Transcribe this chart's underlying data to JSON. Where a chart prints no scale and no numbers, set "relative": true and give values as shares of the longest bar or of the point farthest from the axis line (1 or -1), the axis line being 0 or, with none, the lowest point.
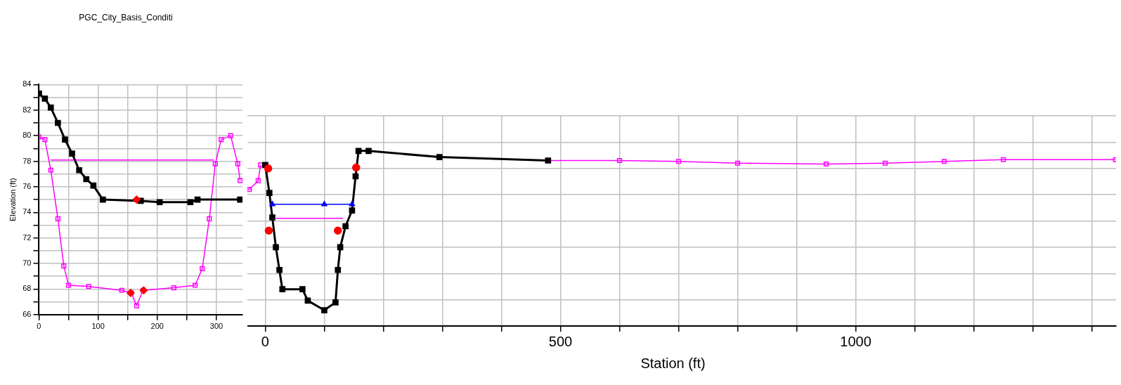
{
  "chart_data": [
    {
      "type": "line",
      "title": "PGC_City_Basis_Conditi",
      "ylabel": "Elevation (ft)",
      "xlim": [
        0,
        344
      ],
      "ylim": [
        66,
        84
      ],
      "xticks": [
        0,
        {
          "value": 50,
          "label": null
        },
        100,
        {
          "value": 150,
          "label": null
        },
        200,
        {
          "value": 250,
          "label": null
        },
        300
      ],
      "yticks": [
        66,
        {
          "value": 67,
          "label": null
        },
        68,
        {
          "value": 69,
          "label": null
        },
        70,
        {
          "value": 71,
          "label": null
        },
        72,
        {
          "value": 73,
          "label": null
        },
        74,
        {
          "value": 75,
          "label": null
        },
        76,
        {
          "value": 77,
          "label": null
        },
        78,
        {
          "value": 79,
          "label": null
        },
        80,
        {
          "value": 81,
          "label": null
        },
        82,
        {
          "value": 83,
          "label": null
        },
        84
      ],
      "grid": true,
      "legend": false,
      "series": [
        {
          "type": "line",
          "color": "#ff00ff",
          "marker": "none",
          "x": [
            20,
            296
          ],
          "values": [
            78.1,
            78.1
          ]
        },
        {
          "type": "line",
          "color": "#ff00ff",
          "marker": "square",
          "x": [
            0,
            10,
            20,
            32,
            42,
            50,
            84,
            140,
            156,
            165,
            176,
            228,
            264,
            276,
            288,
            298,
            308,
            324,
            336,
            340
          ],
          "values": [
            79.9,
            79.7,
            77.3,
            73.5,
            69.8,
            68.3,
            68.2,
            67.9,
            67.7,
            66.7,
            67.9,
            68.1,
            68.3,
            69.6,
            73.5,
            77.8,
            79.7,
            80.0,
            77.8,
            76.5
          ]
        },
        {
          "type": "line",
          "color": "#000000",
          "marker": "square",
          "x": [
            0,
            10,
            20,
            32,
            44,
            56,
            68,
            80,
            92,
            108,
            172,
            204,
            256,
            268,
            340
          ],
          "values": [
            83.3,
            82.9,
            82.2,
            81.0,
            79.7,
            78.6,
            77.3,
            76.6,
            76.1,
            75.0,
            74.9,
            74.8,
            74.8,
            75.0,
            75.0
          ]
        },
        {
          "type": "scatter",
          "color": "#ff0000",
          "marker": "diamond",
          "x": [
            165,
            155,
            177
          ],
          "values": [
            75.0,
            67.7,
            67.9
          ]
        }
      ]
    },
    {
      "type": "line",
      "xlabel": "Station (ft)",
      "relative": true,
      "xlim": [
        -60,
        1441
      ],
      "xticks": [
        0,
        {
          "value": 100,
          "label": null
        },
        {
          "value": 200,
          "label": null
        },
        {
          "value": 300,
          "label": null
        },
        {
          "value": 400,
          "label": null
        },
        500,
        {
          "value": 600,
          "label": null
        },
        {
          "value": 700,
          "label": null
        },
        {
          "value": 800,
          "label": null
        },
        {
          "value": 900,
          "label": null
        },
        1000,
        {
          "value": 1100,
          "label": null
        },
        {
          "value": 1200,
          "label": null
        },
        {
          "value": 1300,
          "label": null
        },
        {
          "value": 1400,
          "label": null
        }
      ],
      "grid": true,
      "legend": false,
      "series": [
        {
          "type": "line",
          "color": "#ff00ff",
          "marker": "none",
          "x": [
            18,
            132
          ],
          "values": [
            0.615,
            0.615
          ]
        },
        {
          "type": "line",
          "color": "#ff00ff",
          "marker": "square",
          "x": [
            -48,
            -27,
            -12,
            -8,
            0,
            479,
            600,
            700,
            800,
            950,
            1050,
            1150,
            1250,
            1440
          ],
          "values": [
            0.8,
            0.78,
            0.83,
            0.92,
            null,
            0.945,
            0.945,
            0.94,
            0.93,
            0.925,
            0.93,
            0.94,
            0.95,
            0.95
          ]
        },
        {
          "type": "line",
          "color": "#000000",
          "marker": "square",
          "x": [
            0,
            7,
            12,
            18,
            24,
            29,
            63,
            72,
            100,
            119,
            123,
            127,
            136,
            147,
            153,
            158,
            175,
            295,
            479
          ],
          "values": [
            0.92,
            0.76,
            0.62,
            0.45,
            0.32,
            0.21,
            0.21,
            0.145,
            0.09,
            0.135,
            0.32,
            0.45,
            0.57,
            0.66,
            0.855,
            1,
            1,
            0.965,
            0.945
          ]
        },
        {
          "type": "line",
          "color": "#0000ff",
          "marker": "triangle",
          "x": [
            12,
            100,
            147
          ],
          "values": [
            0.695,
            0.695,
            0.695
          ]
        },
        {
          "type": "scatter",
          "color": "#ff0000",
          "marker": "circle",
          "x": [
            5,
            154,
            6,
            123
          ],
          "values": [
            0.9,
            0.905,
            0.545,
            0.545
          ]
        }
      ]
    }
  ]
}
